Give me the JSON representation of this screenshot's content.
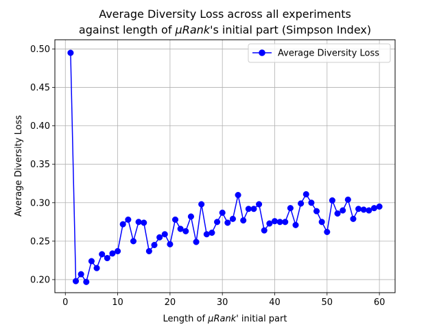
{
  "chart_data": {
    "type": "line",
    "title_line1": "Average Diversity Loss across all experiments",
    "title_line2_prefix": "against length of ",
    "title_line2_math": "μRank",
    "title_line2_suffix": "'s initial part (Simpson Index)",
    "xlabel_prefix": "Length of ",
    "xlabel_math": "μRank",
    "xlabel_suffix": "' initial part",
    "ylabel": "Average Diversity Loss",
    "xlim": [
      -2,
      63
    ],
    "ylim": [
      0.183,
      0.512
    ],
    "x_ticks": [
      0,
      10,
      20,
      30,
      40,
      50,
      60
    ],
    "x_tick_labels": [
      "0",
      "10",
      "20",
      "30",
      "40",
      "50",
      "60"
    ],
    "y_ticks": [
      0.2,
      0.25,
      0.3,
      0.35,
      0.4,
      0.45,
      0.5
    ],
    "y_tick_labels": [
      "0.20",
      "0.25",
      "0.30",
      "0.35",
      "0.40",
      "0.45",
      "0.50"
    ],
    "grid": true,
    "legend_position": "top-right",
    "color": "#0000ff",
    "series": [
      {
        "name": "Average Diversity Loss",
        "x": [
          1,
          2,
          3,
          4,
          5,
          6,
          7,
          8,
          9,
          10,
          11,
          12,
          13,
          14,
          15,
          16,
          17,
          18,
          19,
          20,
          21,
          22,
          23,
          24,
          25,
          26,
          27,
          28,
          29,
          30,
          31,
          32,
          33,
          34,
          35,
          36,
          37,
          38,
          39,
          40,
          41,
          42,
          43,
          44,
          45,
          46,
          47,
          48,
          49,
          50,
          51,
          52,
          53,
          54,
          55,
          56,
          57,
          58,
          59,
          60
        ],
        "y": [
          0.495,
          0.198,
          0.207,
          0.197,
          0.224,
          0.215,
          0.233,
          0.228,
          0.234,
          0.237,
          0.272,
          0.278,
          0.25,
          0.275,
          0.274,
          0.237,
          0.245,
          0.255,
          0.259,
          0.246,
          0.278,
          0.266,
          0.263,
          0.282,
          0.249,
          0.298,
          0.259,
          0.261,
          0.275,
          0.287,
          0.274,
          0.279,
          0.31,
          0.277,
          0.292,
          0.292,
          0.298,
          0.264,
          0.273,
          0.276,
          0.275,
          0.275,
          0.293,
          0.271,
          0.299,
          0.311,
          0.3,
          0.289,
          0.275,
          0.262,
          0.303,
          0.286,
          0.29,
          0.304,
          0.279,
          0.292,
          0.291,
          0.29,
          0.293,
          0.295
        ]
      }
    ]
  }
}
